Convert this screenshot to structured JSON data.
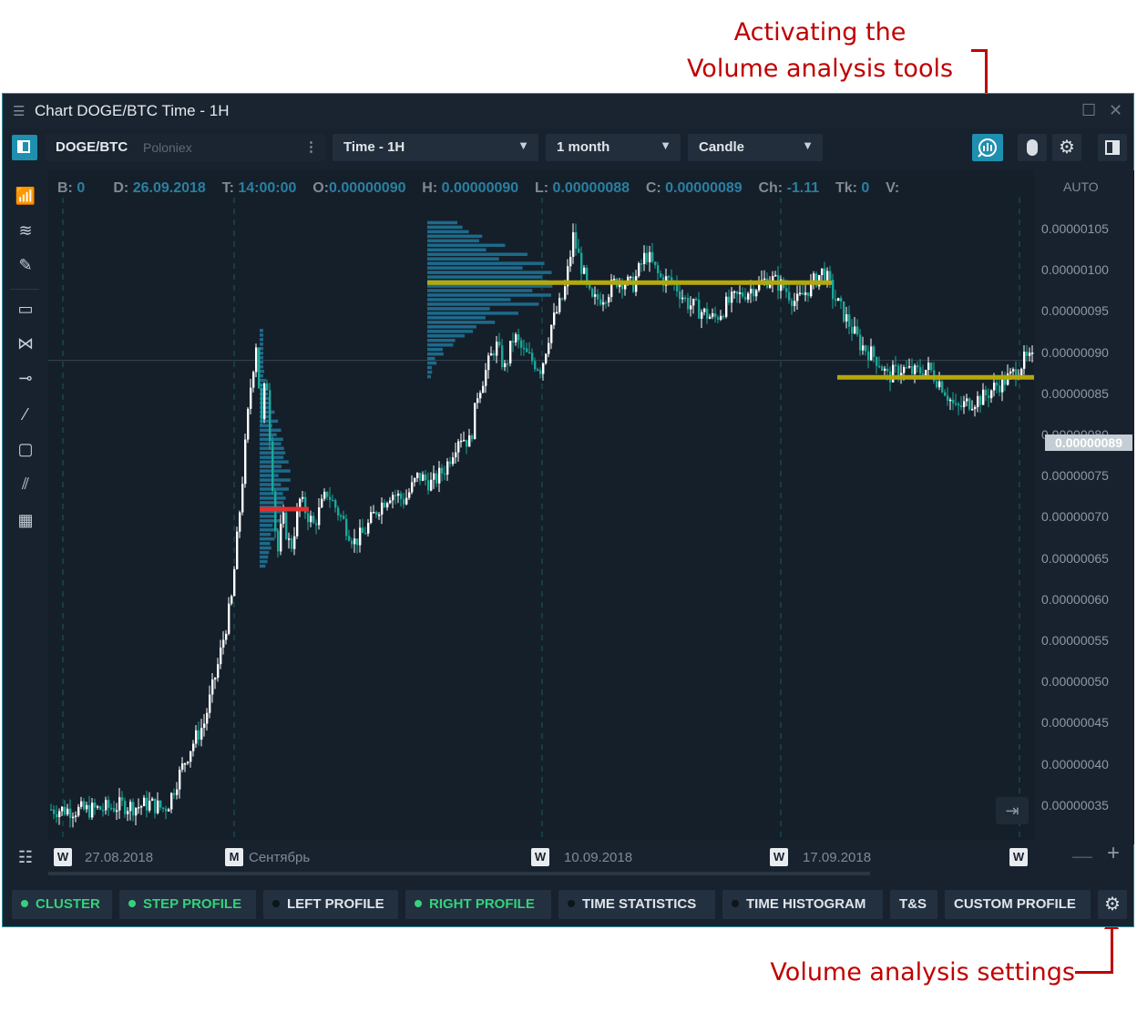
{
  "annotations": {
    "top_line1": "Activating the",
    "top_line2": "Volume analysis tools",
    "bottom": "Volume analysis settings"
  },
  "window": {
    "title": "Chart DOGE/BTC Time - 1H"
  },
  "toolbar": {
    "symbol": "DOGE/BTC",
    "exchange": "Poloniex",
    "timeframe": "Time - 1H",
    "period": "1 month",
    "chart_type": "Candle"
  },
  "infobar": {
    "b_label": "B:",
    "b_value": "0",
    "d_label": "D:",
    "d_value": "26.09.2018",
    "t_label": "T:",
    "t_value": "14:00:00",
    "o_label": "O:",
    "o_value": "0.00000090",
    "h_label": "H:",
    "h_value": "0.00000090",
    "l_label": "L:",
    "l_value": "0.00000088",
    "c_label": "C:",
    "c_value": "0.00000089",
    "ch_label": "Ch:",
    "ch_value": "-1.11",
    "tk_label": "Tk:",
    "tk_value": "0",
    "v_label": "V:",
    "v_value": ""
  },
  "price_axis": {
    "auto_label": "AUTO",
    "current_price": "0.00000089",
    "ticks": [
      "0.00000105",
      "0.00000100",
      "0.00000095",
      "0.00000090",
      "0.00000085",
      "0.00000080",
      "0.00000075",
      "0.00000070",
      "0.00000065",
      "0.00000060",
      "0.00000055",
      "0.00000050",
      "0.00000045",
      "0.00000040",
      "0.00000035"
    ]
  },
  "time_axis": {
    "marks": [
      {
        "letter": "W",
        "label": "27.08.2018"
      },
      {
        "letter": "M",
        "label": "Сентябрь"
      },
      {
        "letter": "W",
        "label": "10.09.2018"
      },
      {
        "letter": "W",
        "label": "17.09.2018"
      },
      {
        "letter": "W",
        "label": ""
      }
    ]
  },
  "volume_buttons": [
    {
      "label": "CLUSTER",
      "active": true
    },
    {
      "label": "STEP PROFILE",
      "active": true
    },
    {
      "label": "LEFT PROFILE",
      "active": false
    },
    {
      "label": "RIGHT PROFILE",
      "active": true
    },
    {
      "label": "TIME STATISTICS",
      "active": false
    },
    {
      "label": "TIME HISTOGRAM",
      "active": false
    },
    {
      "label": "T&S",
      "active": false
    },
    {
      "label": "CUSTOM PROFILE",
      "active": false
    }
  ],
  "colors": {
    "background": "#141f2a",
    "bull": "#ffffff",
    "bear": "#1aa89a",
    "profile": "#1e6a8a",
    "poc": "#b5a80a",
    "poc_red": "#e03030",
    "accent": "#2d8a9a",
    "annotation": "#c00000"
  },
  "chart_data": {
    "type": "candlestick",
    "symbol": "DOGE/BTC",
    "timeframe": "1H",
    "x": [
      "27.08.2018",
      "Сентябрь",
      "10.09.2018",
      "17.09.2018"
    ],
    "path": [
      [
        0,
        34.5
      ],
      [
        40,
        34.4
      ],
      [
        60,
        34.6
      ],
      [
        80,
        35.0
      ],
      [
        95,
        34.8
      ],
      [
        110,
        35.2
      ],
      [
        125,
        34.6
      ],
      [
        130,
        35.0
      ],
      [
        140,
        38.0
      ],
      [
        155,
        42.0
      ],
      [
        170,
        45.0
      ],
      [
        185,
        52.0
      ],
      [
        200,
        60.0
      ],
      [
        210,
        72.0
      ],
      [
        220,
        85.0
      ],
      [
        228,
        92.0
      ],
      [
        232,
        80.0
      ],
      [
        238,
        88.0
      ],
      [
        244,
        76.0
      ],
      [
        250,
        65.0
      ],
      [
        256,
        70.0
      ],
      [
        265,
        66.0
      ],
      [
        275,
        72.0
      ],
      [
        290,
        69.0
      ],
      [
        305,
        73.0
      ],
      [
        320,
        70.0
      ],
      [
        335,
        67.0
      ],
      [
        345,
        68.0
      ],
      [
        360,
        71.0
      ],
      [
        375,
        73.0
      ],
      [
        390,
        72.0
      ],
      [
        405,
        75.0
      ],
      [
        420,
        74.0
      ],
      [
        435,
        76.0
      ],
      [
        450,
        80.0
      ],
      [
        462,
        79.0
      ],
      [
        470,
        85.0
      ],
      [
        480,
        88.0
      ],
      [
        490,
        91.0
      ],
      [
        500,
        88.0
      ],
      [
        510,
        92.0
      ],
      [
        520,
        90.0
      ],
      [
        530,
        89.0
      ],
      [
        540,
        88.0
      ],
      [
        550,
        93.0
      ],
      [
        565,
        97.0
      ],
      [
        575,
        104.0
      ],
      [
        585,
        100.0
      ],
      [
        595,
        96.0
      ],
      [
        610,
        97.0
      ],
      [
        625,
        99.0
      ],
      [
        640,
        98.0
      ],
      [
        655,
        102.0
      ],
      [
        670,
        99.0
      ],
      [
        685,
        98.5
      ],
      [
        700,
        96.0
      ],
      [
        715,
        95.0
      ],
      [
        730,
        94.0
      ],
      [
        745,
        96.0
      ],
      [
        760,
        97.0
      ],
      [
        775,
        98.0
      ],
      [
        790,
        99.0
      ],
      [
        805,
        98.0
      ],
      [
        820,
        96.0
      ],
      [
        835,
        98.0
      ],
      [
        850,
        100.0
      ],
      [
        860,
        97.0
      ],
      [
        870,
        95.0
      ],
      [
        880,
        93.0
      ],
      [
        890,
        91.0
      ],
      [
        900,
        90.0
      ],
      [
        910,
        89.0
      ],
      [
        920,
        87.0
      ],
      [
        935,
        88.0
      ],
      [
        950,
        87.5
      ],
      [
        965,
        88.0
      ],
      [
        980,
        86.0
      ],
      [
        995,
        83.0
      ],
      [
        1010,
        84.0
      ],
      [
        1025,
        84.5
      ],
      [
        1040,
        86.0
      ],
      [
        1055,
        87.0
      ],
      [
        1070,
        89.0
      ],
      [
        1080,
        89.0
      ]
    ],
    "volume_profiles": [
      {
        "poc": 71.0,
        "poc_color": "red"
      },
      {
        "poc": 98.5,
        "poc_color": "yellow"
      },
      {
        "poc": 87.0,
        "poc_color": "yellow"
      }
    ],
    "price_scale": "1e-8 BTC",
    "ylim": [
      33,
      108
    ]
  }
}
